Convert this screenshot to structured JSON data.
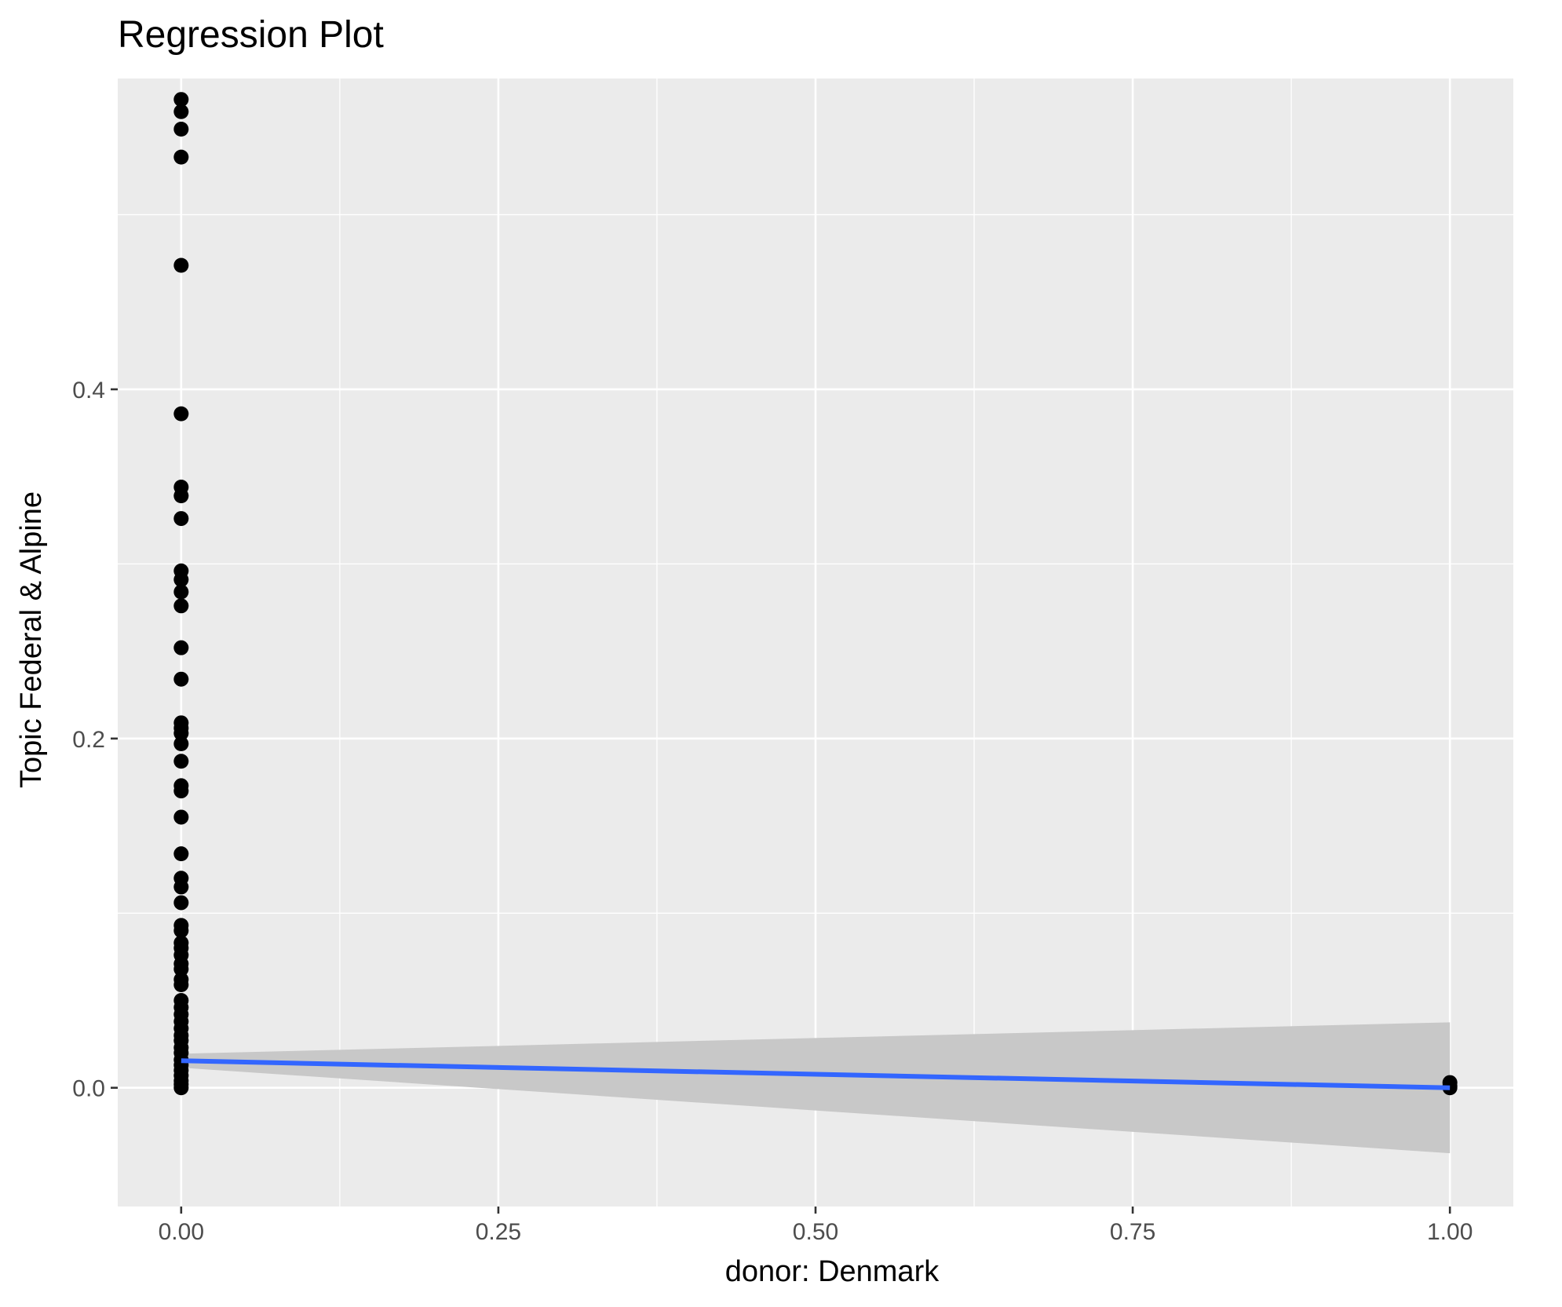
{
  "chart_data": {
    "type": "scatter",
    "title": "Regression Plot",
    "xlabel": "donor: Denmark",
    "ylabel": "Topic Federal & Alpine",
    "xlim": [
      -0.05,
      1.05
    ],
    "ylim": [
      -0.068,
      0.578
    ],
    "x_ticks": [
      {
        "value": 0.0,
        "label": "0.00"
      },
      {
        "value": 0.25,
        "label": "0.25"
      },
      {
        "value": 0.5,
        "label": "0.50"
      },
      {
        "value": 0.75,
        "label": "0.75"
      },
      {
        "value": 1.0,
        "label": "1.00"
      }
    ],
    "y_ticks": [
      {
        "value": 0.0,
        "label": "0.0"
      },
      {
        "value": 0.2,
        "label": "0.2"
      },
      {
        "value": 0.4,
        "label": "0.4"
      }
    ],
    "grid": true,
    "colors": {
      "panel": "#ebebeb",
      "grid": "#ffffff",
      "points": "#000000",
      "fit_line": "#3366ff",
      "confidence_band": "#c8c8c8"
    },
    "points": [
      {
        "x": 0,
        "y": 0.566
      },
      {
        "x": 0,
        "y": 0.559
      },
      {
        "x": 0,
        "y": 0.549
      },
      {
        "x": 0,
        "y": 0.533
      },
      {
        "x": 0,
        "y": 0.471
      },
      {
        "x": 0,
        "y": 0.386
      },
      {
        "x": 0,
        "y": 0.344
      },
      {
        "x": 0,
        "y": 0.339
      },
      {
        "x": 0,
        "y": 0.326
      },
      {
        "x": 0,
        "y": 0.296
      },
      {
        "x": 0,
        "y": 0.291
      },
      {
        "x": 0,
        "y": 0.284
      },
      {
        "x": 0,
        "y": 0.276
      },
      {
        "x": 0,
        "y": 0.252
      },
      {
        "x": 0,
        "y": 0.234
      },
      {
        "x": 0,
        "y": 0.209
      },
      {
        "x": 0,
        "y": 0.206
      },
      {
        "x": 0,
        "y": 0.203
      },
      {
        "x": 0,
        "y": 0.197
      },
      {
        "x": 0,
        "y": 0.187
      },
      {
        "x": 0,
        "y": 0.173
      },
      {
        "x": 0,
        "y": 0.17
      },
      {
        "x": 0,
        "y": 0.155
      },
      {
        "x": 0,
        "y": 0.134
      },
      {
        "x": 0,
        "y": 0.12
      },
      {
        "x": 0,
        "y": 0.115
      },
      {
        "x": 0,
        "y": 0.106
      },
      {
        "x": 0,
        "y": 0.093
      },
      {
        "x": 0,
        "y": 0.09
      },
      {
        "x": 0,
        "y": 0.083
      },
      {
        "x": 0,
        "y": 0.08
      },
      {
        "x": 0,
        "y": 0.076
      },
      {
        "x": 0,
        "y": 0.071
      },
      {
        "x": 0,
        "y": 0.068
      },
      {
        "x": 0,
        "y": 0.062
      },
      {
        "x": 0,
        "y": 0.059
      },
      {
        "x": 0,
        "y": 0.05
      },
      {
        "x": 0,
        "y": 0.046
      },
      {
        "x": 0,
        "y": 0.042
      },
      {
        "x": 0,
        "y": 0.038
      },
      {
        "x": 0,
        "y": 0.034
      },
      {
        "x": 0,
        "y": 0.03
      },
      {
        "x": 0,
        "y": 0.027
      },
      {
        "x": 0,
        "y": 0.023
      },
      {
        "x": 0,
        "y": 0.02
      },
      {
        "x": 0,
        "y": 0.016
      },
      {
        "x": 0,
        "y": 0.013
      },
      {
        "x": 0,
        "y": 0.01
      },
      {
        "x": 0,
        "y": 0.007
      },
      {
        "x": 0,
        "y": 0.004
      },
      {
        "x": 0,
        "y": 0.002
      },
      {
        "x": 0,
        "y": 0.0
      },
      {
        "x": 1,
        "y": 0.003
      },
      {
        "x": 1,
        "y": 0.001
      },
      {
        "x": 1,
        "y": 0.0
      }
    ],
    "fit_line": {
      "x": [
        0,
        1
      ],
      "y": [
        0.0155,
        0.0
      ]
    },
    "confidence_band": {
      "x": [
        0,
        1
      ],
      "upper": [
        0.0195,
        0.0375
      ],
      "lower": [
        0.0115,
        -0.0375
      ]
    }
  }
}
